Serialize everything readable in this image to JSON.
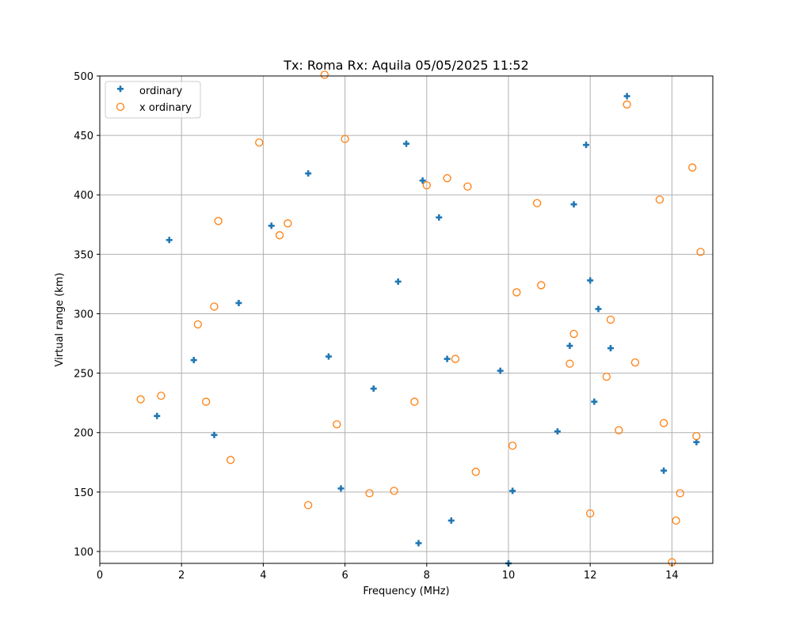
{
  "chart_data": {
    "type": "scatter",
    "title": "Tx: Roma Rx: Aquila 05/05/2025 11:52",
    "xlabel": "Frequency (MHz)",
    "ylabel": "Virtual range (km)",
    "xlim": [
      0,
      15
    ],
    "ylim": [
      90,
      500
    ],
    "xticks": [
      0,
      2,
      4,
      6,
      8,
      10,
      12,
      14
    ],
    "yticks": [
      100,
      150,
      200,
      250,
      300,
      350,
      400,
      450,
      500
    ],
    "grid": true,
    "legend_position": "upper left",
    "series": [
      {
        "name": "ordinary",
        "marker": "plus",
        "color": "#1f77b4",
        "points": [
          [
            1.4,
            214
          ],
          [
            1.7,
            362
          ],
          [
            2.3,
            261
          ],
          [
            2.8,
            198
          ],
          [
            3.4,
            309
          ],
          [
            4.2,
            374
          ],
          [
            5.1,
            418
          ],
          [
            5.6,
            264
          ],
          [
            5.9,
            153
          ],
          [
            6.7,
            237
          ],
          [
            7.3,
            327
          ],
          [
            7.5,
            443
          ],
          [
            7.8,
            107
          ],
          [
            7.9,
            412
          ],
          [
            8.3,
            381
          ],
          [
            8.5,
            262
          ],
          [
            8.6,
            126
          ],
          [
            9.8,
            252
          ],
          [
            10.0,
            90
          ],
          [
            10.1,
            151
          ],
          [
            11.2,
            201
          ],
          [
            11.5,
            273
          ],
          [
            11.6,
            392
          ],
          [
            11.9,
            442
          ],
          [
            12.0,
            328
          ],
          [
            12.1,
            226
          ],
          [
            12.2,
            304
          ],
          [
            12.5,
            271
          ],
          [
            12.9,
            483
          ],
          [
            13.8,
            168
          ],
          [
            14.6,
            192
          ]
        ]
      },
      {
        "name": "x ordinary",
        "marker": "circle-open",
        "color": "#ff7f0e",
        "points": [
          [
            1.0,
            228
          ],
          [
            1.5,
            231
          ],
          [
            2.4,
            291
          ],
          [
            2.6,
            226
          ],
          [
            2.8,
            306
          ],
          [
            2.9,
            378
          ],
          [
            3.2,
            177
          ],
          [
            3.9,
            444
          ],
          [
            4.4,
            366
          ],
          [
            4.6,
            376
          ],
          [
            5.1,
            139
          ],
          [
            5.5,
            501
          ],
          [
            5.8,
            207
          ],
          [
            6.0,
            447
          ],
          [
            6.6,
            149
          ],
          [
            7.2,
            151
          ],
          [
            7.7,
            226
          ],
          [
            8.0,
            408
          ],
          [
            8.5,
            414
          ],
          [
            8.7,
            262
          ],
          [
            9.0,
            407
          ],
          [
            9.2,
            167
          ],
          [
            10.1,
            189
          ],
          [
            10.2,
            318
          ],
          [
            10.7,
            393
          ],
          [
            10.8,
            324
          ],
          [
            11.5,
            258
          ],
          [
            11.6,
            283
          ],
          [
            12.0,
            132
          ],
          [
            12.4,
            247
          ],
          [
            12.5,
            295
          ],
          [
            12.7,
            202
          ],
          [
            12.9,
            476
          ],
          [
            13.1,
            259
          ],
          [
            13.7,
            396
          ],
          [
            13.8,
            208
          ],
          [
            14.0,
            91
          ],
          [
            14.1,
            126
          ],
          [
            14.2,
            149
          ],
          [
            14.5,
            423
          ],
          [
            14.6,
            197
          ],
          [
            14.7,
            352
          ]
        ]
      }
    ]
  },
  "legend": {
    "items": [
      "ordinary",
      "x ordinary"
    ]
  }
}
